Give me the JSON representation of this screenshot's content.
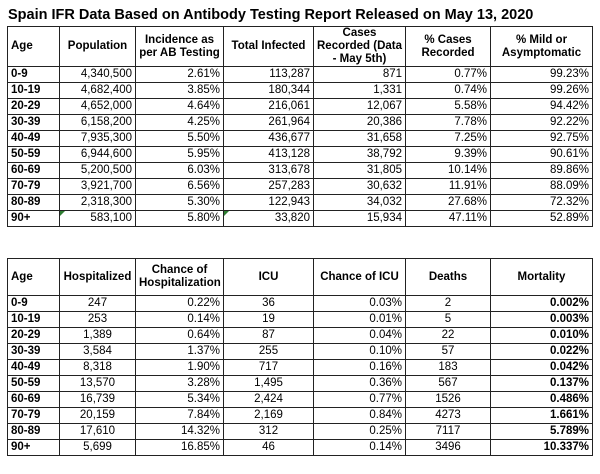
{
  "title": "Spain IFR Data Based on Antibody Testing Report Released on May 13, 2020",
  "table1": {
    "headers": [
      "Age",
      "Population",
      "Incidence as per AB Testing",
      "Total Infected",
      "Cases Recorded (Data - May 5th)",
      "% Cases Recorded",
      "% Mild or Asymptomatic"
    ],
    "rows": [
      [
        "0-9",
        "4,340,500",
        "2.61%",
        "113,287",
        "871",
        "0.77%",
        "99.23%"
      ],
      [
        "10-19",
        "4,682,400",
        "3.85%",
        "180,344",
        "1,331",
        "0.74%",
        "99.26%"
      ],
      [
        "20-29",
        "4,652,000",
        "4.64%",
        "216,061",
        "12,067",
        "5.58%",
        "94.42%"
      ],
      [
        "30-39",
        "6,158,200",
        "4.25%",
        "261,964",
        "20,386",
        "7.78%",
        "92.22%"
      ],
      [
        "40-49",
        "7,935,300",
        "5.50%",
        "436,677",
        "31,658",
        "7.25%",
        "92.75%"
      ],
      [
        "50-59",
        "6,944,600",
        "5.95%",
        "413,128",
        "38,792",
        "9.39%",
        "90.61%"
      ],
      [
        "60-69",
        "5,200,500",
        "6.03%",
        "313,678",
        "31,805",
        "10.14%",
        "89.86%"
      ],
      [
        "70-79",
        "3,921,700",
        "6.56%",
        "257,283",
        "30,632",
        "11.91%",
        "88.09%"
      ],
      [
        "80-89",
        "2,318,300",
        "5.30%",
        "122,943",
        "34,032",
        "27.68%",
        "72.32%"
      ],
      [
        "90+",
        "583,100",
        "5.80%",
        "33,820",
        "15,934",
        "47.11%",
        "52.89%"
      ]
    ]
  },
  "table2": {
    "headers": [
      "Age",
      "Hospitalized",
      "Chance of Hospitalization",
      "ICU",
      "Chance of ICU",
      "Deaths",
      "Mortality"
    ],
    "rows": [
      [
        "0-9",
        "247",
        "0.22%",
        "36",
        "0.03%",
        "2",
        "0.002%"
      ],
      [
        "10-19",
        "253",
        "0.14%",
        "19",
        "0.01%",
        "5",
        "0.003%"
      ],
      [
        "20-29",
        "1,389",
        "0.64%",
        "87",
        "0.04%",
        "22",
        "0.010%"
      ],
      [
        "30-39",
        "3,584",
        "1.37%",
        "255",
        "0.10%",
        "57",
        "0.022%"
      ],
      [
        "40-49",
        "8,318",
        "1.90%",
        "717",
        "0.16%",
        "183",
        "0.042%"
      ],
      [
        "50-59",
        "13,570",
        "3.28%",
        "1,495",
        "0.36%",
        "567",
        "0.137%"
      ],
      [
        "60-69",
        "16,739",
        "5.34%",
        "2,424",
        "0.77%",
        "1526",
        "0.486%"
      ],
      [
        "70-79",
        "20,159",
        "7.84%",
        "2,169",
        "0.84%",
        "4273",
        "1.661%"
      ],
      [
        "80-89",
        "17,610",
        "14.32%",
        "312",
        "0.25%",
        "7117",
        "5.789%"
      ],
      [
        "90+",
        "5,699",
        "16.85%",
        "46",
        "0.14%",
        "3496",
        "10.337%"
      ]
    ]
  },
  "colors": {
    "cell_marker": "#2e7d32"
  }
}
